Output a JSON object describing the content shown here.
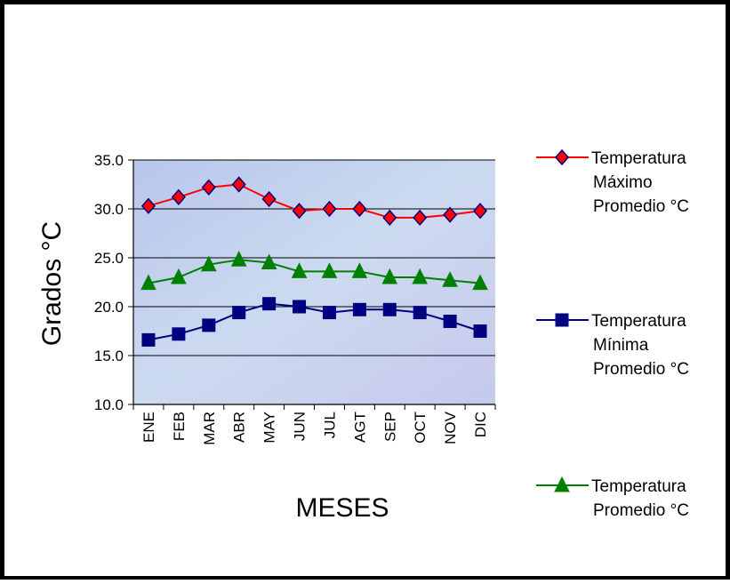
{
  "chart_data": {
    "type": "line",
    "categories": [
      "ENE",
      "FEB",
      "MAR",
      "ABR",
      "MAY",
      "JUN",
      "JUL",
      "AGT",
      "SEP",
      "OCT",
      "NOV",
      "DIC"
    ],
    "xlabel": "MESES",
    "ylabel": "Grados °C",
    "ylim": [
      10.0,
      35.0
    ],
    "yticks": [
      "10.0",
      "15.0",
      "20.0",
      "25.0",
      "30.0",
      "35.0"
    ],
    "grid": true,
    "legend_position": "right",
    "series": [
      {
        "name": "Temperatura Máximo Promedio °C",
        "legend_lines": [
          "Temperatura",
          "Máximo",
          "Promedio °C"
        ],
        "values": [
          30.3,
          31.2,
          32.2,
          32.5,
          31.0,
          29.8,
          30.0,
          30.0,
          29.1,
          29.1,
          29.4,
          29.8
        ],
        "line_color": "#ff0000",
        "marker": "diamond",
        "marker_color": "#ff0000",
        "marker_stroke": "#000080"
      },
      {
        "name": "Temperatura Mínima Promedio °C",
        "legend_lines": [
          "Temperatura",
          "Mínima",
          "Promedio °C"
        ],
        "values": [
          16.6,
          17.2,
          18.1,
          19.4,
          20.3,
          20.0,
          19.4,
          19.7,
          19.7,
          19.4,
          18.5,
          17.5
        ],
        "line_color": "#000080",
        "marker": "square",
        "marker_color": "#000080",
        "marker_stroke": "#000080"
      },
      {
        "name": "Temperatura Promedio °C",
        "legend_lines": [
          "Temperatura",
          "Promedio °C"
        ],
        "values": [
          22.4,
          23.0,
          24.3,
          24.8,
          24.5,
          23.6,
          23.6,
          23.6,
          23.0,
          23.0,
          22.7,
          22.4
        ],
        "line_color": "#008000",
        "marker": "triangle",
        "marker_color": "#008000",
        "marker_stroke": "#008000"
      }
    ]
  }
}
